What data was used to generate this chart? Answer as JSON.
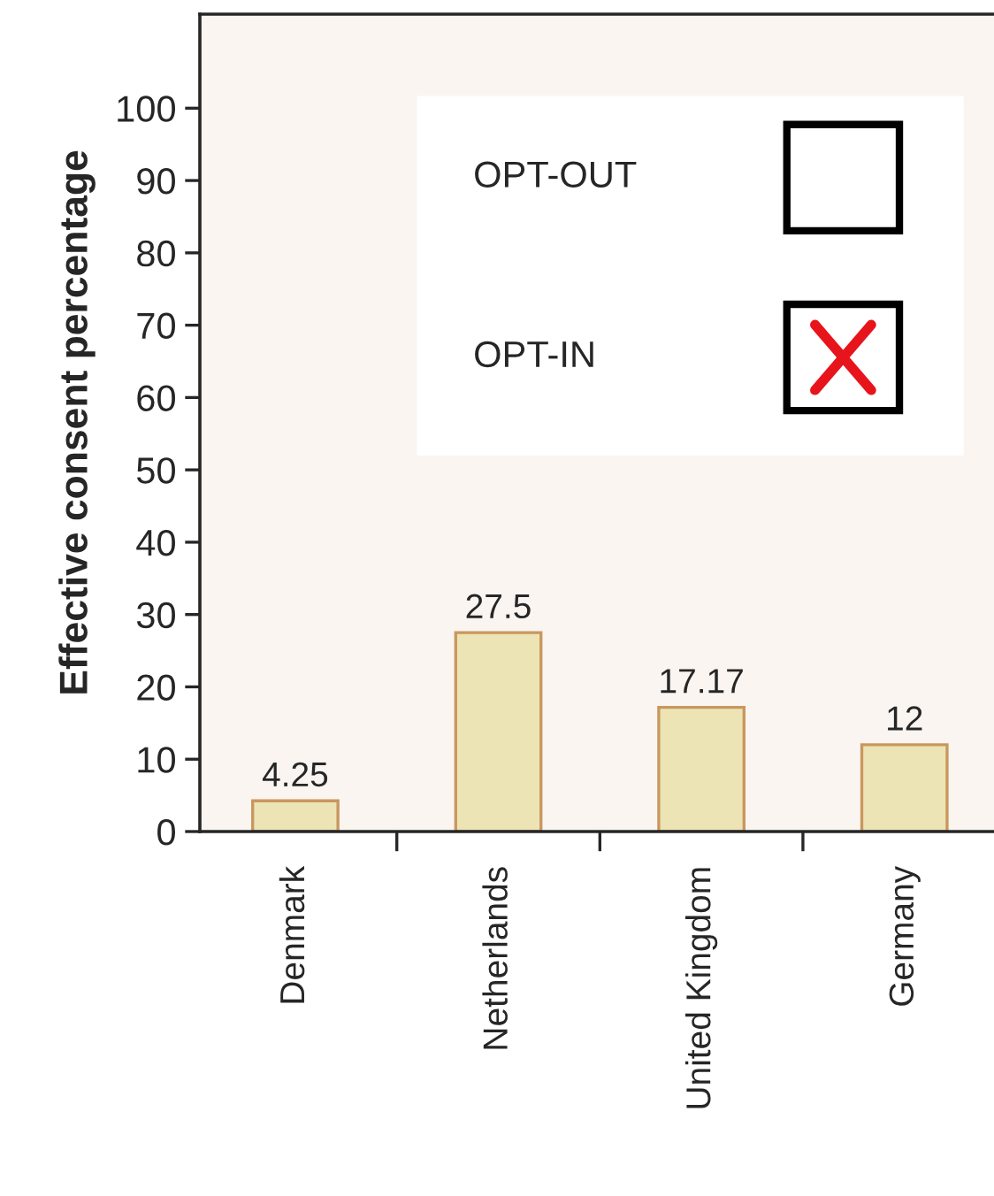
{
  "chart_data": {
    "type": "bar",
    "ylabel": "Effective consent percentage",
    "categories": [
      "Denmark",
      "Netherlands",
      "United Kingdom",
      "Germany"
    ],
    "values": [
      4.25,
      27.5,
      17.17,
      12
    ],
    "color": "#ece4b4",
    "data_labels": true,
    "ylim": [
      0,
      113
    ],
    "yticks": [
      0,
      10,
      20,
      30,
      40,
      50,
      60,
      70,
      80,
      90,
      100
    ],
    "grid": false,
    "annotations": [
      "OPT-OUT",
      "OPT-IN"
    ]
  }
}
